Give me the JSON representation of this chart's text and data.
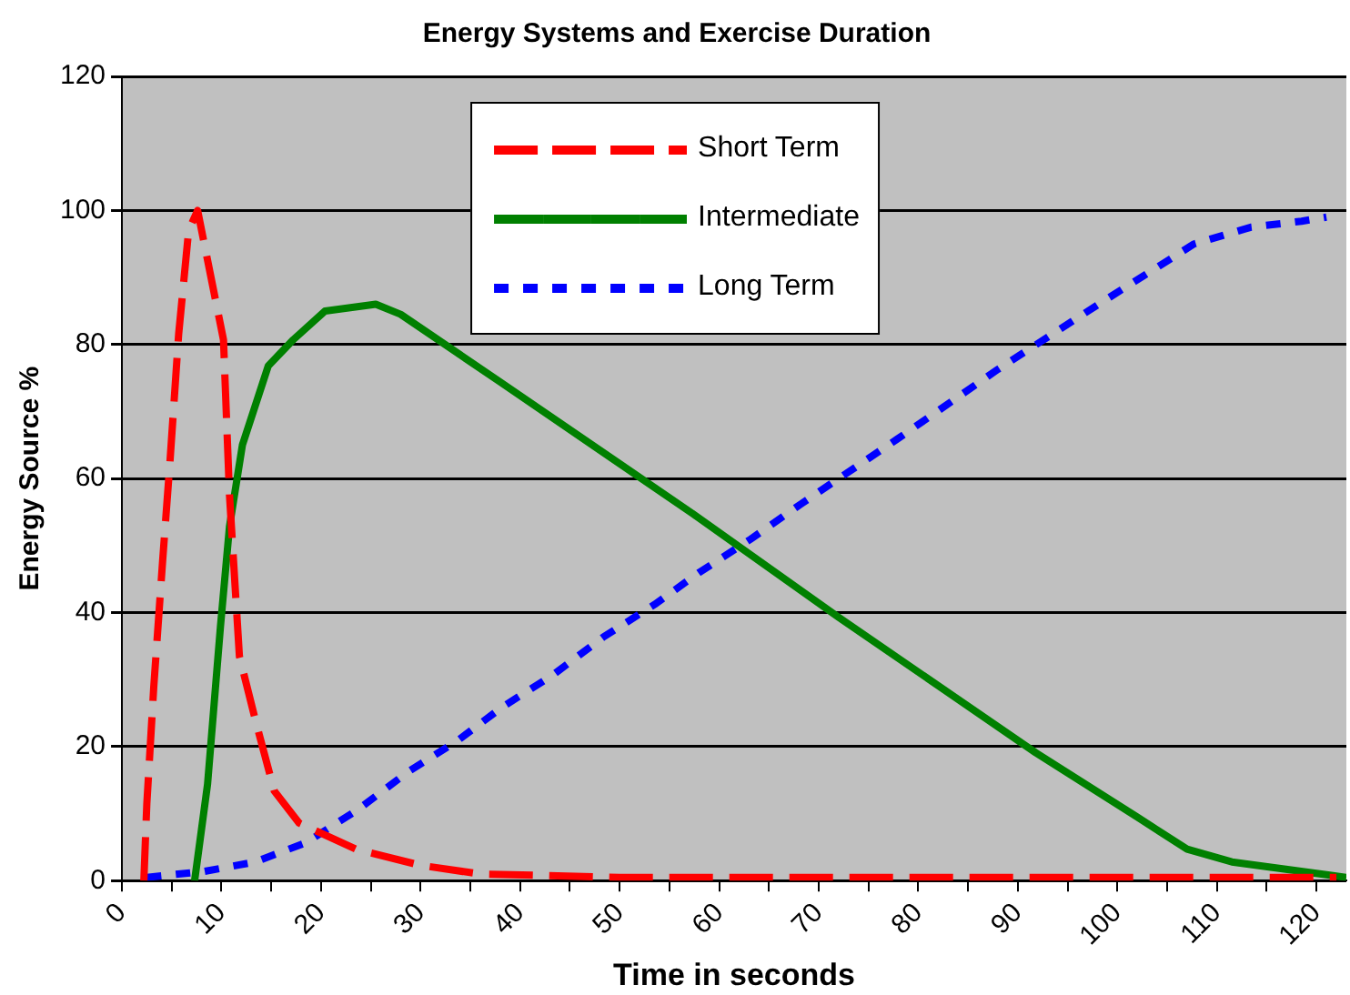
{
  "chart_data": {
    "type": "line",
    "title": "Energy Systems and Exercise Duration",
    "xlabel": "Time in seconds",
    "ylabel": "Energy Source %",
    "xlim": [
      0,
      123
    ],
    "ylim": [
      0,
      120
    ],
    "xticks": [
      0,
      {
        "value": 5,
        "label": null
      },
      10,
      {
        "value": 15,
        "label": null
      },
      20,
      {
        "value": 25,
        "label": null
      },
      30,
      {
        "value": 35,
        "label": null
      },
      40,
      {
        "value": 45,
        "label": null
      },
      50,
      {
        "value": 55,
        "label": null
      },
      60,
      {
        "value": 65,
        "label": null
      },
      70,
      {
        "value": 75,
        "label": null
      },
      80,
      {
        "value": 85,
        "label": null
      },
      90,
      {
        "value": 95,
        "label": null
      },
      100,
      {
        "value": 105,
        "label": null
      },
      110,
      {
        "value": 115,
        "label": null
      },
      120
    ],
    "yticks": [
      0,
      20,
      40,
      60,
      80,
      100,
      120
    ],
    "grid": "y",
    "legend": "top",
    "marker": "none",
    "series": [
      {
        "name": "Short Term",
        "color": "#ff0000",
        "line_style": "dashed",
        "x": [
          2.2,
          2.5,
          3.2,
          4.1,
          4.8,
          5.7,
          6.7,
          7.6,
          10.2,
          10.8,
          11.8,
          13.4,
          15.3,
          17.8,
          23.5,
          30,
          36,
          50,
          80,
          110,
          122
        ],
        "values": [
          0,
          11.5,
          29,
          48,
          62,
          81.6,
          97,
          100,
          80.7,
          57.6,
          33.5,
          24,
          13.4,
          8.6,
          4.7,
          2.3,
          1,
          0.5,
          0.5,
          0.5,
          0.5
        ]
      },
      {
        "name": "Intermediate",
        "color": "#008000",
        "line_style": "solid",
        "x": [
          7.3,
          8.6,
          9.9,
          10.8,
          12.1,
          14.7,
          17.2,
          20.4,
          25.5,
          28,
          38,
          57.4,
          72,
          91.8,
          102,
          107,
          111.5,
          121,
          123
        ],
        "values": [
          0,
          14.4,
          38,
          52.8,
          65,
          76.8,
          80.7,
          85,
          86,
          84.5,
          74.4,
          54.7,
          39.3,
          19.1,
          9.5,
          4.7,
          2.8,
          0.9,
          0.5
        ]
      },
      {
        "name": "Long Term",
        "color": "#0000ff",
        "line_style": "dotted",
        "x": [
          2.5,
          8.3,
          13.4,
          18.5,
          23.6,
          28.7,
          33.8,
          38.2,
          43.3,
          48.4,
          53.5,
          58,
          63.1,
          68.2,
          77.8,
          88,
          98.1,
          107.7,
          113.4,
          118.5,
          121
        ],
        "values": [
          0.5,
          1.4,
          2.8,
          5.7,
          10.5,
          16.2,
          21,
          25.9,
          30.7,
          36.4,
          41.2,
          46,
          50.9,
          56.2,
          65.8,
          76.3,
          86,
          95,
          97.5,
          98.4,
          99
        ]
      }
    ]
  }
}
